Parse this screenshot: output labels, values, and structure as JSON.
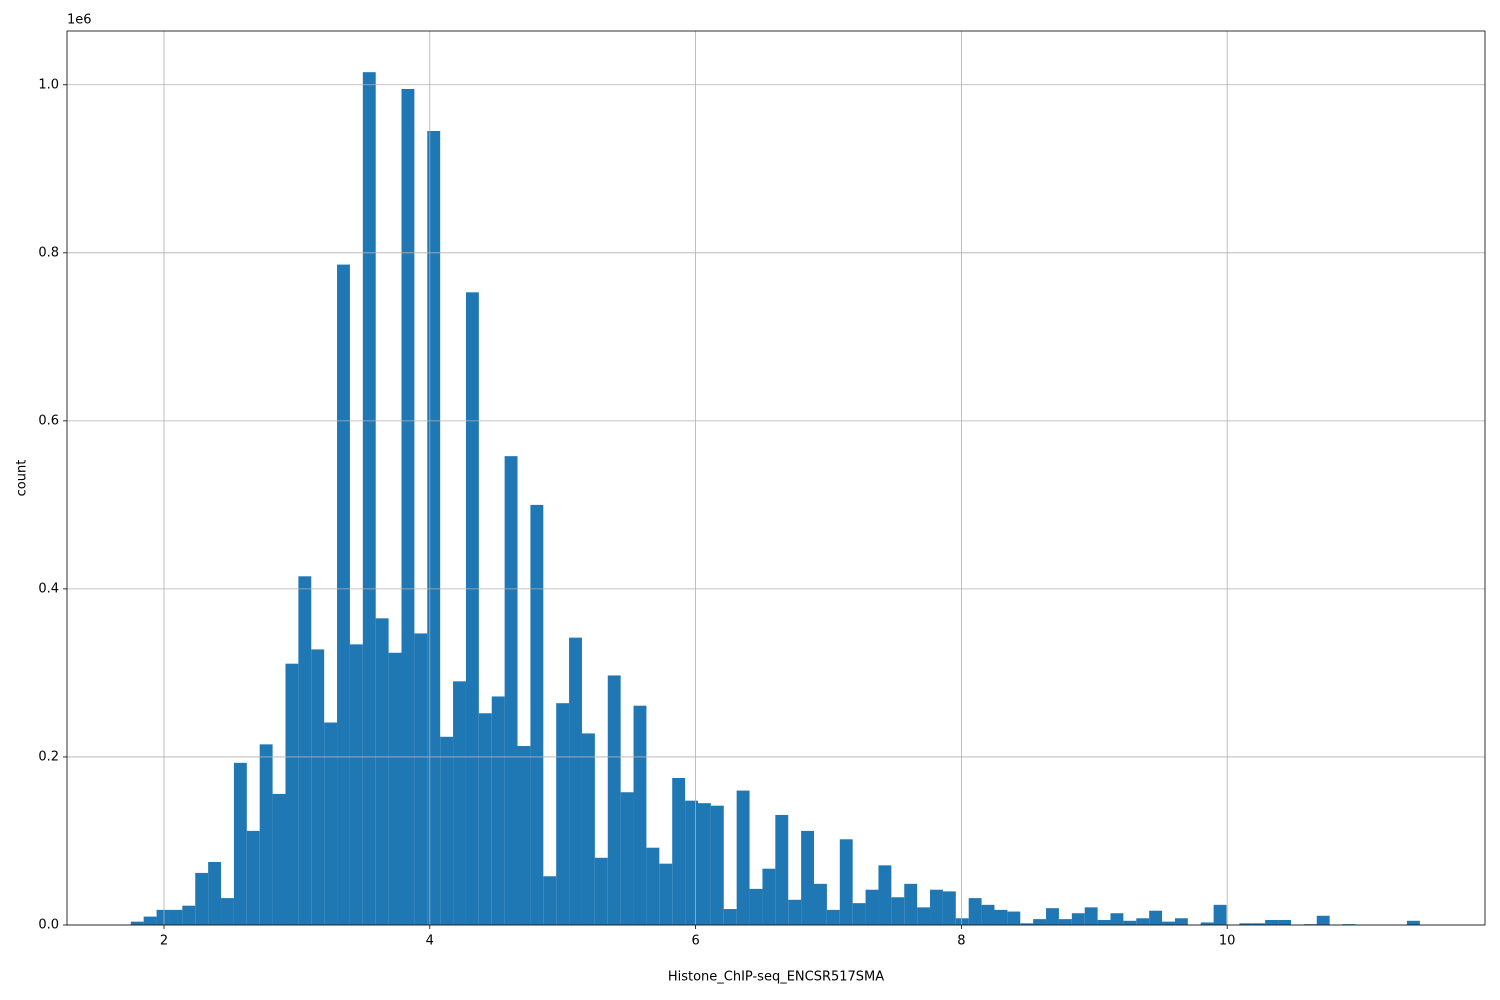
{
  "chart_data": {
    "type": "histogram",
    "x_label": "Histone_ChIP-seq_ENCSR517SMA",
    "y_label": "count",
    "y_offset_label": "1e6",
    "color": "#1f77b4",
    "grid": true,
    "bins": [
      1.75,
      1.847,
      1.944,
      2.041,
      2.138,
      2.235,
      2.332,
      2.429,
      2.526,
      2.623,
      2.72,
      2.817,
      2.914,
      3.011,
      3.108,
      3.205,
      3.302,
      3.399,
      3.496,
      3.593,
      3.69,
      3.787,
      3.884,
      3.981,
      4.078,
      4.175,
      4.272,
      4.369,
      4.466,
      4.563,
      4.66,
      4.757,
      4.854,
      4.951,
      5.048,
      5.145,
      5.242,
      5.339,
      5.436,
      5.533,
      5.63,
      5.727,
      5.824,
      5.921,
      6.018,
      6.115,
      6.212,
      6.309,
      6.406,
      6.503,
      6.6,
      6.697,
      6.794,
      6.891,
      6.988,
      7.085,
      7.182,
      7.279,
      7.376,
      7.473,
      7.57,
      7.667,
      7.764,
      7.861,
      7.958,
      8.055,
      8.152,
      8.249,
      8.346,
      8.443,
      8.54,
      8.637,
      8.734,
      8.831,
      8.928,
      9.025,
      9.122,
      9.219,
      9.316,
      9.413,
      9.51,
      9.607,
      9.704,
      9.801,
      9.898,
      9.995,
      10.092,
      10.189,
      10.286,
      10.383,
      10.48,
      10.577,
      10.674,
      10.771,
      10.868,
      10.965,
      11.062,
      11.159,
      11.256,
      11.353,
      11.45
    ],
    "counts": [
      4000,
      10000,
      18000,
      18000,
      23000,
      62000,
      75000,
      32000,
      193000,
      112000,
      215000,
      156000,
      311000,
      415000,
      328000,
      241000,
      786000,
      334000,
      1015000,
      365000,
      324000,
      995000,
      347000,
      945000,
      224000,
      290000,
      753000,
      252000,
      272000,
      558000,
      213000,
      500000,
      58000,
      264000,
      342000,
      228000,
      80000,
      297000,
      158000,
      261000,
      92000,
      73000,
      175000,
      148000,
      145000,
      142000,
      19000,
      160000,
      43000,
      67000,
      131000,
      30000,
      112000,
      49000,
      18000,
      102000,
      26000,
      42000,
      71000,
      33000,
      49000,
      21000,
      42000,
      40000,
      8000,
      32000,
      24000,
      18000,
      16000,
      2000,
      7000,
      20000,
      7000,
      14000,
      21000,
      6000,
      14000,
      5000,
      8000,
      17000,
      4000,
      8000,
      0,
      3000,
      24000,
      0,
      2000,
      2000,
      6000,
      6000,
      0,
      1000,
      11000,
      0,
      1000,
      0,
      0,
      0,
      0,
      5000
    ],
    "xlim": [
      1.27,
      11.94
    ],
    "ylim": [
      0,
      1064000
    ],
    "xticks": [
      2,
      4,
      6,
      8,
      10
    ],
    "yticks": [
      {
        "value": 0,
        "label": "0.0"
      },
      {
        "value": 200000,
        "label": "0.2"
      },
      {
        "value": 400000,
        "label": "0.4"
      },
      {
        "value": 600000,
        "label": "0.6"
      },
      {
        "value": 800000,
        "label": "0.8"
      },
      {
        "value": 1000000,
        "label": "1.0"
      }
    ]
  }
}
